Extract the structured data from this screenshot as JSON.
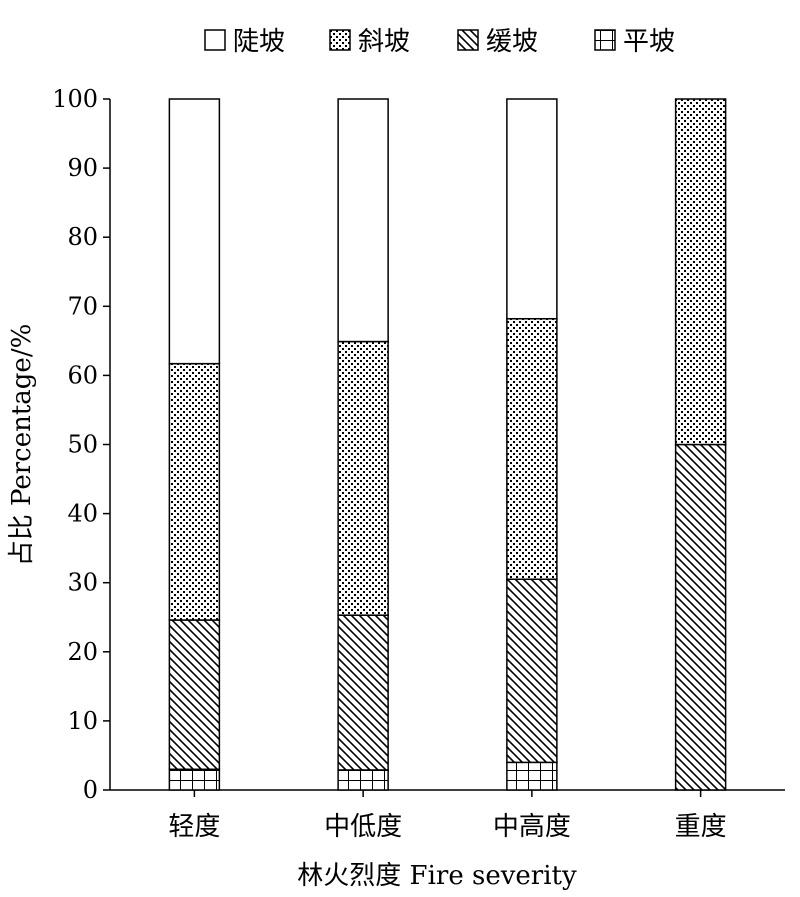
{
  "chart_data": {
    "type": "bar",
    "stacked": true,
    "categories": [
      "轻度",
      "中低度",
      "中高度",
      "重度"
    ],
    "series": [
      {
        "name": "平坡",
        "values": [
          3.0,
          2.9,
          4.0,
          0
        ],
        "pattern": "grid"
      },
      {
        "name": "缓坡",
        "values": [
          21.6,
          22.4,
          26.5,
          50.0
        ],
        "pattern": "diagonal"
      },
      {
        "name": "斜坡",
        "values": [
          37.1,
          39.6,
          37.7,
          50.0
        ],
        "pattern": "dots"
      },
      {
        "name": "陡坡",
        "values": [
          38.3,
          35.1,
          31.8,
          0
        ],
        "pattern": "blank"
      }
    ],
    "legend_order": [
      "陡坡",
      "斜坡",
      "缓坡",
      "平坡"
    ],
    "xlabel": "林火烈度 Fire severity",
    "ylabel": "占比 Percentage/%",
    "ylim": [
      0,
      100
    ],
    "yticks": [
      0,
      10,
      20,
      30,
      40,
      50,
      60,
      70,
      80,
      90,
      100
    ],
    "grid": false,
    "legend_position": "top"
  }
}
